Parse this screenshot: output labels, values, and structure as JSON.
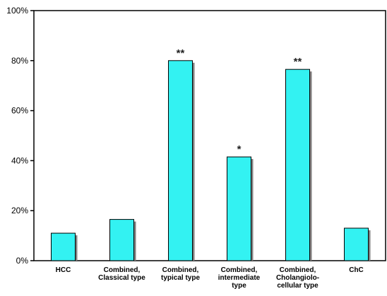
{
  "chart_data": {
    "type": "bar",
    "categories": [
      [
        "HCC"
      ],
      [
        "Combined,",
        "Classical type"
      ],
      [
        "Combined,",
        "typical type"
      ],
      [
        "Combined,",
        "intermediate",
        "type"
      ],
      [
        "Combined,",
        "Cholangiolo-",
        "cellular type"
      ],
      [
        "ChC"
      ]
    ],
    "values": [
      11,
      16.5,
      80,
      41.5,
      76.5,
      13
    ],
    "annotations": [
      "",
      "",
      "**",
      "*",
      "**",
      ""
    ],
    "ylim": [
      0,
      100
    ],
    "yticks": [
      0,
      20,
      40,
      60,
      80,
      100
    ],
    "ytick_labels": [
      "0%",
      "20%",
      "40%",
      "60%",
      "80%",
      "100%"
    ],
    "title": "",
    "xlabel": "",
    "ylabel": "",
    "grid": false,
    "legend": "none",
    "colors": {
      "bar_fill": "#33f2f2",
      "bar_stroke": "#000000",
      "bar_shadow": "#7f7f7f",
      "axis": "#000000"
    }
  }
}
